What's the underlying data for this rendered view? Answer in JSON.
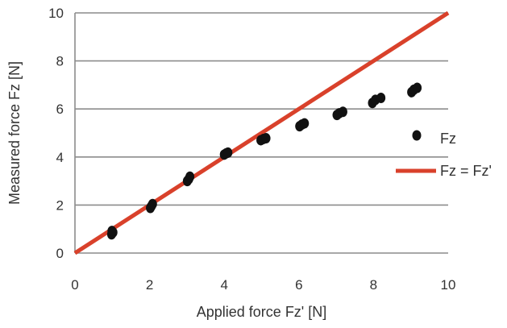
{
  "chart_data": {
    "type": "scatter",
    "xlabel": "Applied force Fz' [N]",
    "ylabel": "Measured force Fz [N]",
    "xlim": [
      0,
      10
    ],
    "ylim": [
      0,
      10
    ],
    "x_ticks": [
      "0",
      "2",
      "4",
      "6",
      "8",
      "10"
    ],
    "y_ticks": [
      "0",
      "2",
      "4",
      "6",
      "8",
      "10"
    ],
    "grid": "horizontal",
    "legend_position": "right",
    "series": [
      {
        "name": "Fz",
        "type": "scatter",
        "color": "#111111",
        "x": [
          0.98,
          1.02,
          0.99,
          2.02,
          2.05,
          2.08,
          3.01,
          3.05,
          3.08,
          4.0,
          4.05,
          4.1,
          4.98,
          5.05,
          5.12,
          6.02,
          6.08,
          6.15,
          7.02,
          7.08,
          7.18,
          7.97,
          8.05,
          8.2,
          9.02,
          9.08,
          9.17
        ],
        "y": [
          0.78,
          0.86,
          0.92,
          1.88,
          1.96,
          2.04,
          3.0,
          3.08,
          3.18,
          4.1,
          4.15,
          4.18,
          4.7,
          4.75,
          4.78,
          5.28,
          5.35,
          5.4,
          5.75,
          5.82,
          5.88,
          6.25,
          6.38,
          6.46,
          6.7,
          6.8,
          6.88
        ]
      },
      {
        "name": "Fz = Fz'",
        "type": "line",
        "color": "#d9412b",
        "x": [
          0,
          10
        ],
        "y": [
          0,
          10
        ]
      }
    ]
  }
}
